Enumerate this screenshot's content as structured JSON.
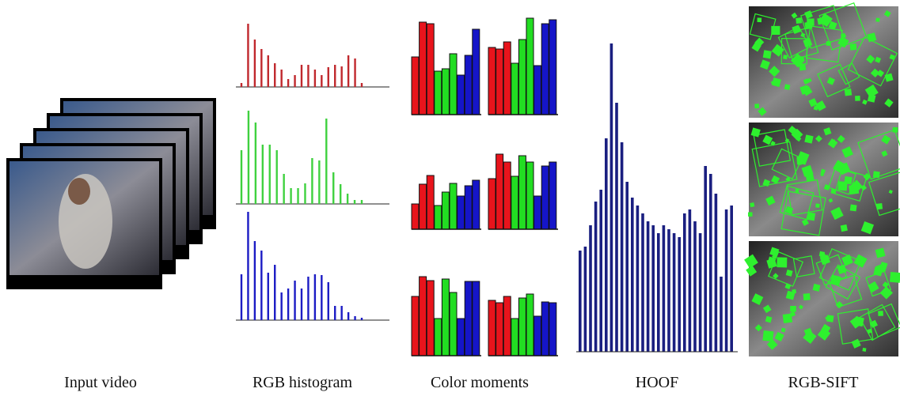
{
  "columns": [
    {
      "label": "Input video"
    },
    {
      "label": "RGB histogram",
      "histograms": [
        {
          "color": "#c0282d",
          "values": [
            5,
            80,
            60,
            48,
            40,
            30,
            22,
            10,
            15,
            28,
            28,
            22,
            15,
            25,
            28,
            26,
            40,
            36,
            5
          ]
        },
        {
          "color": "#3fd13f",
          "values": [
            68,
            118,
            103,
            75,
            75,
            68,
            38,
            20,
            20,
            26,
            58,
            55,
            108,
            40,
            25,
            13,
            5,
            5
          ]
        },
        {
          "color": "#1c1cc4",
          "values": [
            58,
            137,
            100,
            88,
            60,
            70,
            35,
            40,
            50,
            40,
            55,
            58,
            57,
            48,
            18,
            18,
            10,
            5,
            3
          ]
        }
      ]
    },
    {
      "label": "Color moments",
      "colors": [
        "#e8141c",
        "#22dd22",
        "#1515c8"
      ],
      "panels": [
        {
          "values": [
            73,
            117,
            115,
            55,
            58,
            77,
            50,
            75,
            108
          ]
        },
        {
          "values": [
            85,
            83,
            92,
            65,
            95,
            122,
            62,
            115,
            120
          ]
        },
        {
          "values": [
            32,
            57,
            68,
            30,
            47,
            58,
            42,
            55,
            62
          ]
        },
        {
          "values": [
            64,
            95,
            85,
            67,
            93,
            85,
            42,
            80,
            85
          ]
        },
        {
          "values": [
            75,
            100,
            95,
            47,
            97,
            80,
            47,
            94,
            94
          ]
        },
        {
          "values": [
            70,
            67,
            75,
            47,
            73,
            78,
            50,
            68,
            67
          ]
        }
      ]
    },
    {
      "label": "HOOF",
      "color": "#1a1f80",
      "values": [
        128,
        133,
        160,
        190,
        205,
        270,
        390,
        315,
        265,
        215,
        195,
        185,
        175,
        165,
        160,
        150,
        160,
        155,
        150,
        145,
        175,
        180,
        165,
        150,
        235,
        225,
        200,
        95,
        180,
        185
      ]
    },
    {
      "label": "RGB-SIFT"
    }
  ]
}
